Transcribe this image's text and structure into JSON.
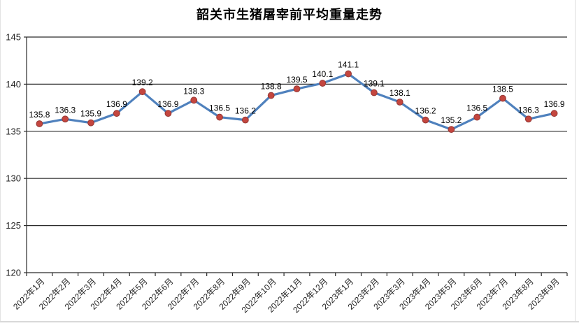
{
  "chart_data": {
    "type": "line",
    "title": "韶关市生猪屠宰前平均重量走势",
    "categories": [
      "2022年1月",
      "2022年2月",
      "2022年3月",
      "2022年4月",
      "2022年5月",
      "2022年6月",
      "2022年7月",
      "2022年8月",
      "2022年9月",
      "2022年10月",
      "2022年11月",
      "2022年12月",
      "2023年1月",
      "2023年2月",
      "2023年3月",
      "2023年4月",
      "2023年5月",
      "2023年6月",
      "2023年7月",
      "2023年8月",
      "2023年9月"
    ],
    "values": [
      135.8,
      136.3,
      135.9,
      136.9,
      139.2,
      136.9,
      138.3,
      136.5,
      136.2,
      138.8,
      139.5,
      140.1,
      141.1,
      139.1,
      138.1,
      136.2,
      135.2,
      136.5,
      138.5,
      136.3,
      136.9
    ],
    "data_labels": [
      "135.8",
      "136.3",
      "135.9",
      "136.9",
      "139.2",
      "136.9",
      "138.3",
      "136.5",
      "136.2",
      "138.8",
      "139.5",
      "140.1",
      "141.1",
      "139.1",
      "138.1",
      "136.2",
      "135.2",
      "136.5",
      "138.5",
      "136.3",
      "136.9"
    ],
    "xlabel": "",
    "ylabel": "",
    "ylim": [
      120,
      145
    ],
    "yticks": [
      120,
      125,
      130,
      135,
      140,
      145
    ],
    "grid": true,
    "legend": "none",
    "colors": {
      "line": "#4f81bd",
      "marker_fill": "#c4463f",
      "marker_stroke": "#953734",
      "grid": "#2b2b2b",
      "axis": "#2b2b2b",
      "tick_text": "#1f1f1f",
      "data_label": "#000000"
    }
  }
}
